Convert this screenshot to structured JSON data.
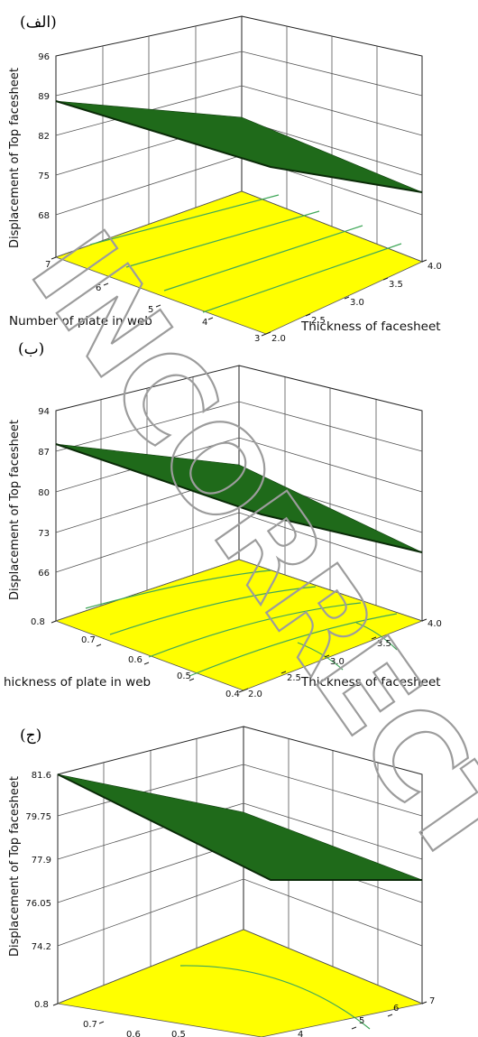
{
  "chart_data": [
    {
      "panel_label": "(الف)",
      "type": "surface3d",
      "zlabel": "Displacement of Top facesheet",
      "xlabel": "Number of plate in web",
      "ylabel": "Thickness of facesheet",
      "x_ticks": [
        "7",
        "6",
        "5",
        "4",
        "3"
      ],
      "y_ticks": [
        "2.0",
        "2.5",
        "3.0",
        "3.5",
        "4.0"
      ],
      "z_ticks": [
        "96",
        "89",
        "82",
        "75",
        "68"
      ],
      "xlim": [
        3,
        7
      ],
      "ylim": [
        2.0,
        4.0
      ],
      "zlim": [
        68,
        96
      ],
      "surface_corners": {
        "x7_y2": 88.5,
        "x3_y2": 83.5,
        "x7_y4": 77.0,
        "x3_y4": 71.5
      },
      "surface_color": "#1f6a1a",
      "contour_floor_color": "#ffff00",
      "contour_line_color": "#40a85a"
    },
    {
      "panel_label": "(ب)",
      "type": "surface3d",
      "zlabel": "Displacement of Top facesheet",
      "xlabel": "hickness of plate in web",
      "ylabel": "Thickness of facesheet",
      "x_ticks": [
        "0.8",
        "0.7",
        "0.6",
        "0.5",
        "0.4"
      ],
      "y_ticks": [
        "2.0",
        "2.5",
        "3.0",
        "3.5",
        "4.0"
      ],
      "z_ticks": [
        "94",
        "87",
        "80",
        "73",
        "66"
      ],
      "xlim": [
        0.4,
        0.8
      ],
      "ylim": [
        2.0,
        4.0
      ],
      "zlim": [
        66,
        94
      ],
      "surface_corners": {
        "x0.8_y2": 88.0,
        "x0.4_y2": 84.0,
        "x0.8_y4": 77.5,
        "x0.4_y4": 71.0
      },
      "surface_color": "#1f6a1a",
      "contour_floor_color": "#ffff00",
      "contour_line_color": "#40a85a"
    },
    {
      "panel_label": "(ج)",
      "type": "surface3d",
      "zlabel": "Displacement of Top facesheet",
      "xlabel": "",
      "ylabel": "",
      "x_ticks": [
        "0.8",
        "0.7",
        "0.6",
        "0.5"
      ],
      "y_ticks": [
        "4",
        "5",
        "6",
        "7"
      ],
      "z_ticks": [
        "81.6",
        "79.75",
        "77.9",
        "76.05",
        "74.2"
      ],
      "xlim": [
        0.4,
        0.8
      ],
      "ylim": [
        3,
        7
      ],
      "zlim": [
        74.2,
        81.6
      ],
      "surface_corners": {
        "x0.8_y3": 81.6,
        "x0.4_y3": 79.8,
        "x0.8_y7": 77.7,
        "x0.4_y7": 77.4
      },
      "surface_color": "#1f6a1a",
      "contour_floor_color": "#ffff00",
      "contour_line_color": "#40a85a"
    }
  ],
  "watermark": {
    "text": "INCORRECT",
    "color": "#9c9c9c"
  }
}
